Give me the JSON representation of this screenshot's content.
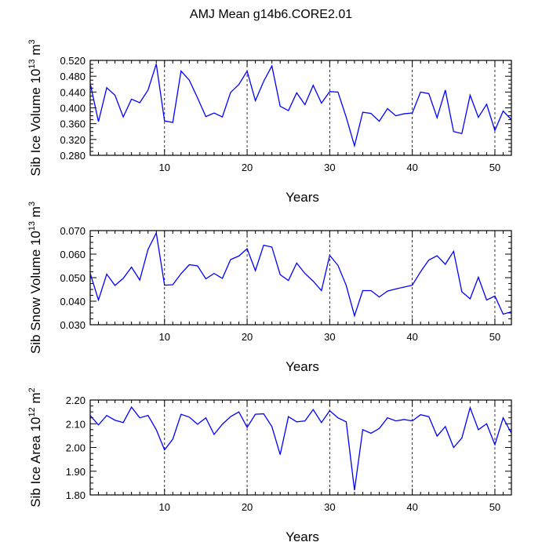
{
  "title": "AMJ Mean g14b6.CORE2.01",
  "line_color": "#0000ff",
  "chart_data": [
    {
      "type": "line",
      "xlabel": "Years",
      "ylabel": "Sib Ice Volume 10",
      "ylabel_exp": "13",
      "ylabel_unit": "m",
      "ylabel_unit_exp": "3",
      "xlim": [
        1,
        52
      ],
      "ylim": [
        0.28,
        0.52
      ],
      "yticks": [
        0.28,
        0.32,
        0.36,
        0.4,
        0.44,
        0.48,
        0.52
      ],
      "ytick_labels": [
        "0.280",
        "0.320",
        "0.360",
        "0.400",
        "0.440",
        "0.480",
        "0.520"
      ],
      "xticks": [
        10,
        20,
        30,
        40,
        50
      ],
      "xtick_labels": [
        "10",
        "20",
        "30",
        "40",
        "50"
      ],
      "x": [
        1,
        2,
        3,
        4,
        5,
        6,
        7,
        8,
        9,
        10,
        11,
        12,
        13,
        14,
        15,
        16,
        17,
        18,
        19,
        20,
        21,
        22,
        23,
        24,
        25,
        26,
        27,
        28,
        29,
        30,
        31,
        32,
        33,
        34,
        35,
        36,
        37,
        38,
        39,
        40,
        41,
        42,
        43,
        44,
        45,
        46,
        47,
        48,
        49,
        50,
        51,
        52
      ],
      "values": [
        0.462,
        0.365,
        0.451,
        0.432,
        0.377,
        0.422,
        0.413,
        0.445,
        0.511,
        0.367,
        0.363,
        0.493,
        0.47,
        0.425,
        0.378,
        0.387,
        0.377,
        0.439,
        0.459,
        0.493,
        0.418,
        0.467,
        0.506,
        0.404,
        0.393,
        0.438,
        0.408,
        0.457,
        0.412,
        0.441,
        0.44,
        0.376,
        0.304,
        0.389,
        0.386,
        0.366,
        0.398,
        0.38,
        0.385,
        0.387,
        0.44,
        0.436,
        0.375,
        0.445,
        0.34,
        0.335,
        0.432,
        0.376,
        0.409,
        0.343,
        0.392,
        0.37
      ]
    },
    {
      "type": "line",
      "xlabel": "Years",
      "ylabel": "Sib Snow Volume 10",
      "ylabel_exp": "13",
      "ylabel_unit": "m",
      "ylabel_unit_exp": "3",
      "xlim": [
        1,
        52
      ],
      "ylim": [
        0.03,
        0.07
      ],
      "yticks": [
        0.03,
        0.04,
        0.05,
        0.06,
        0.07
      ],
      "ytick_labels": [
        "0.030",
        "0.040",
        "0.050",
        "0.060",
        "0.070"
      ],
      "xticks": [
        10,
        20,
        30,
        40,
        50
      ],
      "xtick_labels": [
        "10",
        "20",
        "30",
        "40",
        "50"
      ],
      "x": [
        1,
        2,
        3,
        4,
        5,
        6,
        7,
        8,
        9,
        10,
        11,
        12,
        13,
        14,
        15,
        16,
        17,
        18,
        19,
        20,
        21,
        22,
        23,
        24,
        25,
        26,
        27,
        28,
        29,
        30,
        31,
        32,
        33,
        34,
        35,
        36,
        37,
        38,
        39,
        40,
        41,
        42,
        43,
        44,
        45,
        46,
        47,
        48,
        49,
        50,
        51,
        52
      ],
      "values": [
        0.0518,
        0.0405,
        0.0515,
        0.0467,
        0.0497,
        0.0545,
        0.049,
        0.062,
        0.069,
        0.0468,
        0.047,
        0.0517,
        0.0555,
        0.055,
        0.0495,
        0.0518,
        0.0497,
        0.0577,
        0.0592,
        0.0623,
        0.053,
        0.0638,
        0.063,
        0.0513,
        0.0488,
        0.0562,
        0.0518,
        0.0485,
        0.0445,
        0.0595,
        0.0552,
        0.0467,
        0.0338,
        0.0445,
        0.0445,
        0.0418,
        0.0443,
        0.0452,
        0.046,
        0.0468,
        0.0525,
        0.0575,
        0.0593,
        0.0557,
        0.0612,
        0.044,
        0.041,
        0.0502,
        0.0405,
        0.0422,
        0.0345,
        0.0355
      ]
    },
    {
      "type": "line",
      "xlabel": "Years",
      "ylabel": "Sib Ice Area 10",
      "ylabel_exp": "12",
      "ylabel_unit": "m",
      "ylabel_unit_exp": "2",
      "xlim": [
        1,
        52
      ],
      "ylim": [
        1.8,
        2.2
      ],
      "yticks": [
        1.8,
        1.9,
        2.0,
        2.1,
        2.2
      ],
      "ytick_labels": [
        "1.80",
        "1.90",
        "2.00",
        "2.10",
        "2.20"
      ],
      "xticks": [
        10,
        20,
        30,
        40,
        50
      ],
      "xtick_labels": [
        "10",
        "20",
        "30",
        "40",
        "50"
      ],
      "x": [
        1,
        2,
        3,
        4,
        5,
        6,
        7,
        8,
        9,
        10,
        11,
        12,
        13,
        14,
        15,
        16,
        17,
        18,
        19,
        20,
        21,
        22,
        23,
        24,
        25,
        26,
        27,
        28,
        29,
        30,
        31,
        32,
        33,
        34,
        35,
        36,
        37,
        38,
        39,
        40,
        41,
        42,
        43,
        44,
        45,
        46,
        47,
        48,
        49,
        50,
        51,
        52
      ],
      "values": [
        2.135,
        2.095,
        2.135,
        2.115,
        2.105,
        2.17,
        2.125,
        2.135,
        2.075,
        1.99,
        2.035,
        2.14,
        2.128,
        2.098,
        2.125,
        2.055,
        2.098,
        2.13,
        2.15,
        2.085,
        2.14,
        2.142,
        2.088,
        1.97,
        2.13,
        2.108,
        2.112,
        2.16,
        2.105,
        2.155,
        2.125,
        2.108,
        1.82,
        2.075,
        2.06,
        2.08,
        2.125,
        2.112,
        2.118,
        2.112,
        2.138,
        2.13,
        2.048,
        2.088,
        2.0,
        2.04,
        2.168,
        2.075,
        2.1,
        2.012,
        2.125,
        2.06
      ]
    }
  ]
}
